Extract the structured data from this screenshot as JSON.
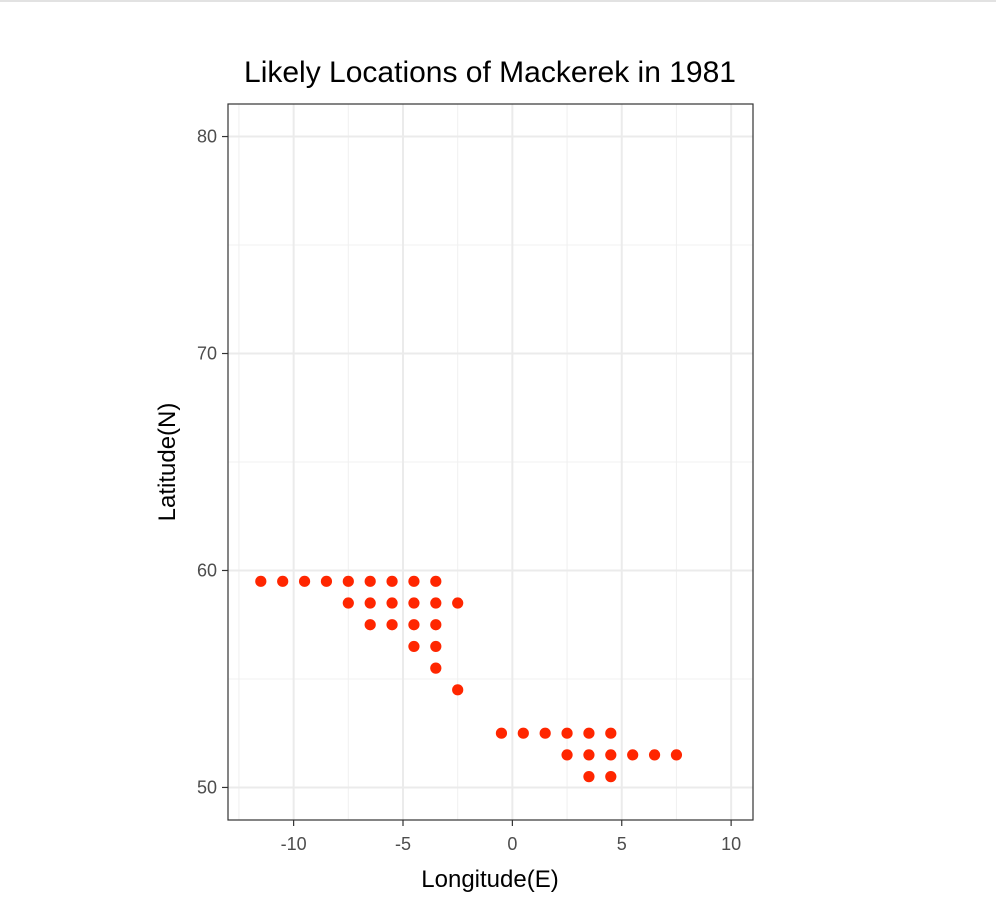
{
  "chart_data": {
    "type": "scatter",
    "title": "Likely Locations of Mackerek in 1981",
    "xlabel": "Longitude(E)",
    "ylabel": "Latitude(N)",
    "xlim": [
      -13,
      11
    ],
    "ylim": [
      48.5,
      81.5
    ],
    "x_ticks": [
      -10,
      -5,
      0,
      5,
      10
    ],
    "x_tick_labels": [
      "-10",
      "-5",
      "0",
      "5",
      "10"
    ],
    "y_ticks": [
      50,
      60,
      70,
      80
    ],
    "y_tick_labels": [
      "50",
      "60",
      "70",
      "80"
    ],
    "x_minor_breaks": [
      -12.5,
      -7.5,
      -2.5,
      2.5,
      7.5
    ],
    "y_minor_breaks": [
      55,
      65,
      75
    ],
    "grid": true,
    "legend": "none",
    "point_color": "#ff2600",
    "points": [
      {
        "x": -11.5,
        "y": 59.5
      },
      {
        "x": -10.5,
        "y": 59.5
      },
      {
        "x": -9.5,
        "y": 59.5
      },
      {
        "x": -8.5,
        "y": 59.5
      },
      {
        "x": -7.5,
        "y": 59.5
      },
      {
        "x": -6.5,
        "y": 59.5
      },
      {
        "x": -5.5,
        "y": 59.5
      },
      {
        "x": -4.5,
        "y": 59.5
      },
      {
        "x": -3.5,
        "y": 59.5
      },
      {
        "x": -7.5,
        "y": 58.5
      },
      {
        "x": -6.5,
        "y": 58.5
      },
      {
        "x": -5.5,
        "y": 58.5
      },
      {
        "x": -4.5,
        "y": 58.5
      },
      {
        "x": -3.5,
        "y": 58.5
      },
      {
        "x": -2.5,
        "y": 58.5
      },
      {
        "x": -6.5,
        "y": 57.5
      },
      {
        "x": -5.5,
        "y": 57.5
      },
      {
        "x": -4.5,
        "y": 57.5
      },
      {
        "x": -3.5,
        "y": 57.5
      },
      {
        "x": -4.5,
        "y": 56.5
      },
      {
        "x": -3.5,
        "y": 56.5
      },
      {
        "x": -3.5,
        "y": 55.5
      },
      {
        "x": -2.5,
        "y": 54.5
      },
      {
        "x": -0.5,
        "y": 52.5
      },
      {
        "x": 0.5,
        "y": 52.5
      },
      {
        "x": 1.5,
        "y": 52.5
      },
      {
        "x": 2.5,
        "y": 52.5
      },
      {
        "x": 3.5,
        "y": 52.5
      },
      {
        "x": 4.5,
        "y": 52.5
      },
      {
        "x": 2.5,
        "y": 51.5
      },
      {
        "x": 3.5,
        "y": 51.5
      },
      {
        "x": 4.5,
        "y": 51.5
      },
      {
        "x": 5.5,
        "y": 51.5
      },
      {
        "x": 6.5,
        "y": 51.5
      },
      {
        "x": 7.5,
        "y": 51.5
      },
      {
        "x": 3.5,
        "y": 50.5
      },
      {
        "x": 4.5,
        "y": 50.5
      }
    ]
  }
}
